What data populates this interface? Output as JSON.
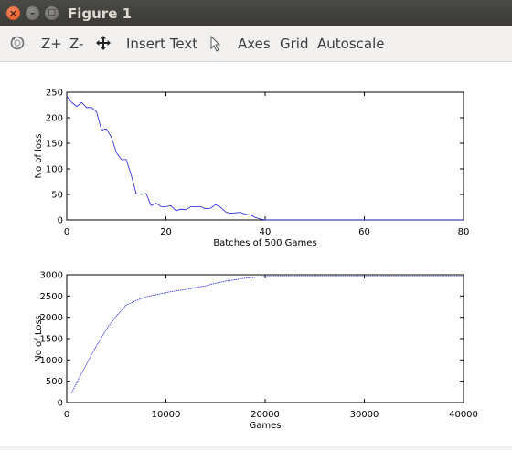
{
  "window": {
    "title": "Figure 1"
  },
  "toolbar": {
    "zoom_in": "Z+",
    "zoom_out": "Z-",
    "insert_text": "Insert Text",
    "axes": "Axes",
    "grid": "Grid",
    "autoscale": "Autoscale"
  },
  "colors": {
    "series": "#1f1fe0",
    "axis": "#000000",
    "titlebar": "#3b3a36"
  },
  "icons": [
    "rotate-icon",
    "pan-icon",
    "select-arrow-icon"
  ],
  "chart_data": [
    {
      "type": "line",
      "xlabel": "Batches of 500 Games",
      "ylabel": "No of loss",
      "xlim": [
        0,
        80
      ],
      "ylim": [
        0,
        250
      ],
      "xticks": [
        "0",
        "20",
        "40",
        "60",
        "80"
      ],
      "yticks": [
        "0",
        "50",
        "100",
        "150",
        "200",
        "250"
      ],
      "grid": false,
      "series": [
        {
          "x": [
            0,
            1,
            2,
            3,
            4,
            5,
            6,
            7,
            8,
            9,
            10,
            11,
            12,
            13,
            14,
            15,
            16,
            17,
            18,
            19,
            20,
            21,
            22,
            23,
            24,
            25,
            26,
            27,
            28,
            29,
            30,
            31,
            32,
            33,
            34,
            35,
            36,
            37,
            38,
            39,
            40,
            45,
            50,
            55,
            60,
            65,
            70,
            75,
            80
          ],
          "values": [
            242,
            230,
            222,
            230,
            220,
            220,
            212,
            176,
            178,
            162,
            132,
            118,
            118,
            88,
            52,
            50,
            52,
            28,
            33,
            26,
            26,
            28,
            18,
            21,
            20,
            26,
            26,
            26,
            22,
            23,
            30,
            25,
            16,
            13,
            14,
            15,
            11,
            10,
            5,
            2,
            0,
            0,
            0,
            0,
            0,
            0,
            0,
            0,
            0
          ]
        }
      ]
    },
    {
      "type": "line",
      "xlabel": "Games",
      "ylabel": "No of Loss",
      "xlim": [
        0,
        40000
      ],
      "ylim": [
        0,
        3000
      ],
      "xticks": [
        "0",
        "10000",
        "20000",
        "30000",
        "40000"
      ],
      "yticks": [
        "0",
        "500",
        "1000",
        "1500",
        "2000",
        "2500",
        "3000"
      ],
      "grid": false,
      "series": [
        {
          "x": [
            500,
            1000,
            1500,
            2000,
            2500,
            3000,
            3500,
            4000,
            4500,
            5000,
            5500,
            6000,
            6500,
            7000,
            7500,
            8000,
            9000,
            10000,
            11000,
            12000,
            13000,
            14000,
            15000,
            16000,
            17000,
            18000,
            19000,
            20000,
            25000,
            30000,
            35000,
            40000
          ],
          "values": [
            230,
            460,
            690,
            900,
            1130,
            1330,
            1520,
            1720,
            1880,
            2030,
            2160,
            2290,
            2340,
            2390,
            2440,
            2480,
            2530,
            2580,
            2620,
            2650,
            2700,
            2740,
            2800,
            2850,
            2880,
            2920,
            2940,
            2960,
            2960,
            2960,
            2960,
            2960
          ]
        }
      ]
    }
  ]
}
